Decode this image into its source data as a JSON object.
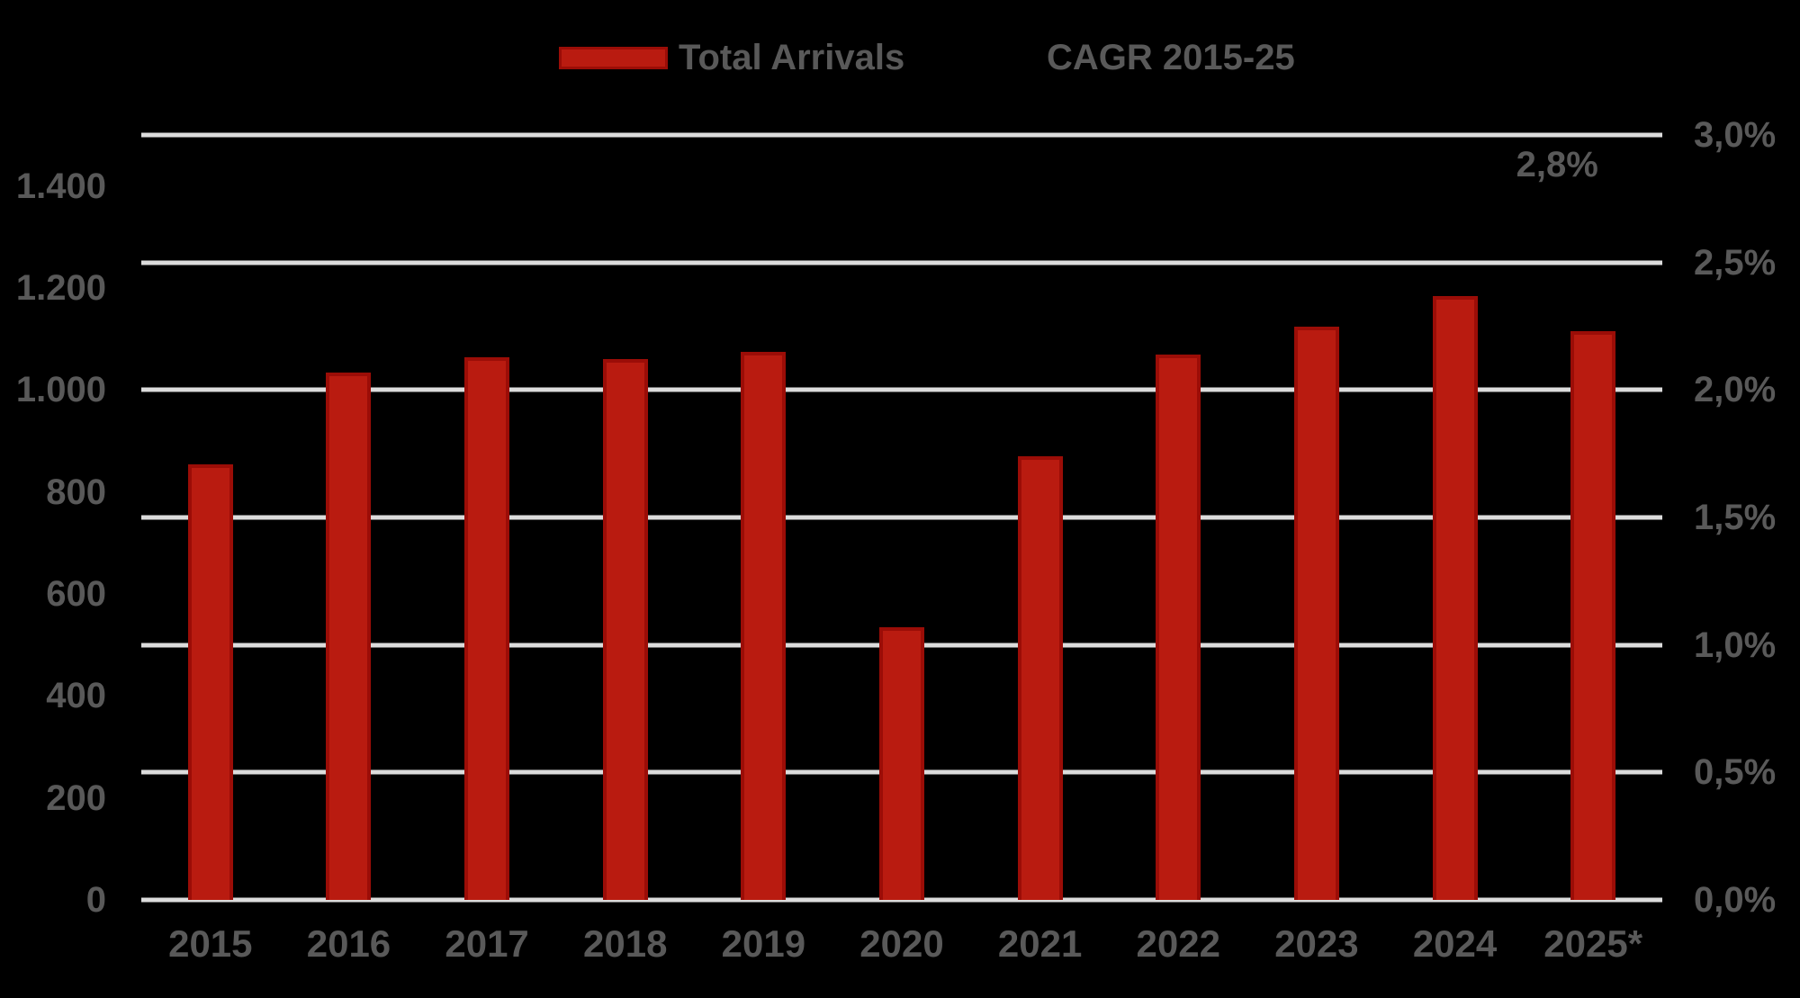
{
  "colors": {
    "background": "#000000",
    "text": "#595959",
    "gridline": "#DCDCDC",
    "bar_fill": "#B91B10",
    "bar_border": "#9B0D07"
  },
  "legend": {
    "total_arrivals_label": "Total Arrivals",
    "cagr_label": "CAGR 2015-25"
  },
  "annotation": {
    "text": "2,8%"
  },
  "chart_data": {
    "type": "bar",
    "title": "",
    "xlabel": "",
    "ylabel_left": "",
    "ylabel_right": "",
    "categories": [
      "2015",
      "2016",
      "2017",
      "2018",
      "2019",
      "2020",
      "2021",
      "2022",
      "2023",
      "2024",
      "2025*"
    ],
    "series": [
      {
        "name": "Total Arrivals",
        "type": "bar",
        "axis": "left",
        "values": [
          855,
          1035,
          1065,
          1060,
          1075,
          535,
          870,
          1070,
          1125,
          1185,
          1115
        ]
      },
      {
        "name": "CAGR 2015-25",
        "type": "annotation-only",
        "axis": "right",
        "points": [
          {
            "category": "2025*",
            "value_pct": 2.8,
            "label": "2,8%"
          }
        ]
      }
    ],
    "left_axis": {
      "min": 0,
      "max": 1500,
      "tick_values": [
        0,
        200,
        400,
        600,
        800,
        1000,
        1200,
        1400
      ],
      "tick_labels": [
        "0",
        "200",
        "400",
        "600",
        "800",
        "1.000",
        "1.200",
        "1.400"
      ]
    },
    "right_axis": {
      "min": 0,
      "max": 3,
      "tick_values": [
        0,
        0.5,
        1,
        1.5,
        2,
        2.5,
        3
      ],
      "tick_labels": [
        "0,0%",
        "0,5%",
        "1,0%",
        "1,5%",
        "2,0%",
        "2,5%",
        "3,0%"
      ]
    },
    "grid": "horizontal",
    "legend_position": "top-center"
  }
}
